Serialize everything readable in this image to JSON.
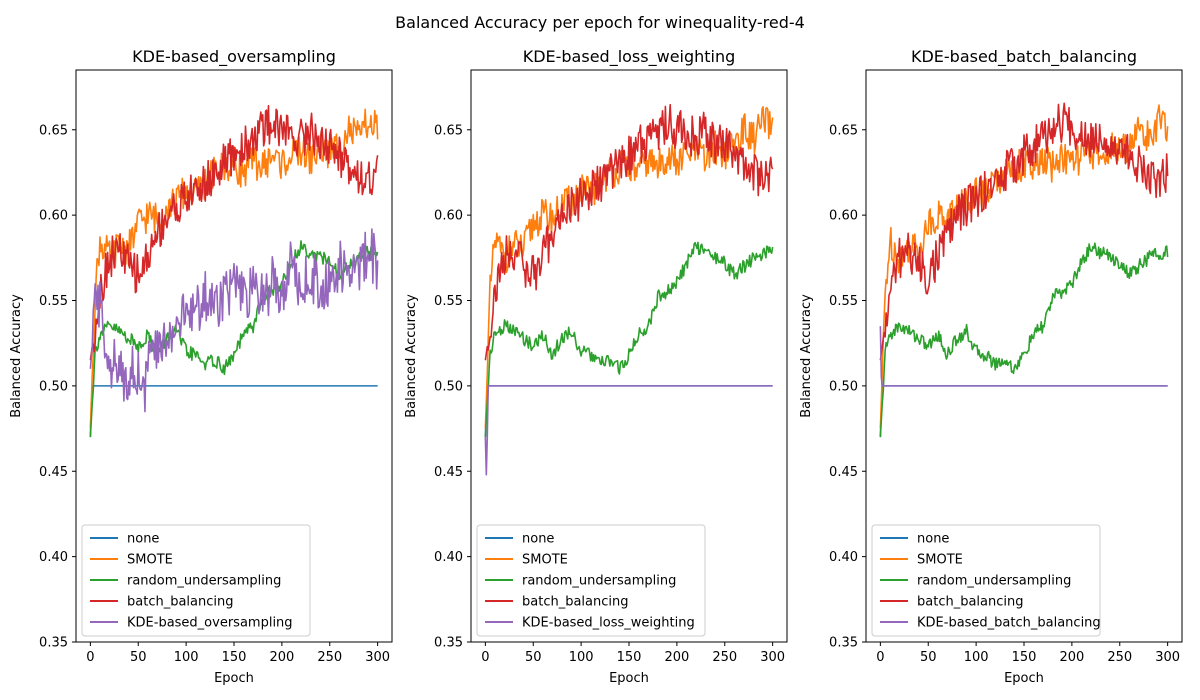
{
  "figure": {
    "suptitle": "Balanced Accuracy per epoch for winequality-red-4"
  },
  "colors": {
    "none": "#1f77b4",
    "SMOTE": "#ff7f0e",
    "random_undersampling": "#2ca02c",
    "batch_balancing": "#d62728",
    "kde": "#9467bd"
  },
  "chart_data": [
    {
      "type": "line",
      "title": "KDE-based_oversampling",
      "xlabel": "Epoch",
      "ylabel": "Balanced Accuracy",
      "xlim": [
        -15,
        315
      ],
      "ylim": [
        0.35,
        0.685
      ],
      "xticks": [
        0,
        50,
        100,
        150,
        200,
        250,
        300
      ],
      "yticks": [
        0.35,
        0.4,
        0.45,
        0.5,
        0.55,
        0.6,
        0.65
      ],
      "legend_position": "lower-left",
      "series": [
        {
          "name": "none",
          "color_key": "none",
          "x": [
            0,
            1,
            2,
            3,
            300
          ],
          "y": [
            0.47,
            0.485,
            0.5,
            0.5,
            0.5
          ]
        },
        {
          "name": "SMOTE",
          "color_key": "SMOTE",
          "x": [
            0,
            5,
            10,
            20,
            30,
            40,
            50,
            60,
            70,
            80,
            90,
            100,
            110,
            120,
            130,
            140,
            150,
            160,
            170,
            180,
            190,
            200,
            210,
            220,
            230,
            240,
            250,
            260,
            270,
            280,
            290,
            300
          ],
          "y": [
            0.475,
            0.555,
            0.585,
            0.575,
            0.582,
            0.58,
            0.595,
            0.6,
            0.598,
            0.605,
            0.608,
            0.615,
            0.612,
            0.62,
            0.625,
            0.628,
            0.63,
            0.625,
            0.632,
            0.628,
            0.635,
            0.63,
            0.635,
            0.638,
            0.632,
            0.64,
            0.636,
            0.642,
            0.65,
            0.645,
            0.655,
            0.65
          ]
        },
        {
          "name": "random_undersampling",
          "color_key": "random_undersampling",
          "x": [
            0,
            5,
            10,
            20,
            30,
            40,
            50,
            60,
            70,
            80,
            90,
            100,
            110,
            120,
            130,
            140,
            150,
            160,
            170,
            180,
            190,
            200,
            210,
            220,
            230,
            240,
            250,
            260,
            270,
            280,
            290,
            300
          ],
          "y": [
            0.47,
            0.52,
            0.53,
            0.535,
            0.532,
            0.528,
            0.523,
            0.53,
            0.518,
            0.528,
            0.532,
            0.52,
            0.518,
            0.513,
            0.515,
            0.51,
            0.518,
            0.53,
            0.535,
            0.552,
            0.555,
            0.56,
            0.572,
            0.582,
            0.578,
            0.576,
            0.572,
            0.565,
            0.57,
            0.575,
            0.578,
            0.578
          ]
        },
        {
          "name": "batch_balancing",
          "color_key": "batch_balancing",
          "x": [
            0,
            5,
            10,
            20,
            30,
            40,
            50,
            60,
            70,
            80,
            90,
            100,
            110,
            120,
            130,
            140,
            150,
            160,
            170,
            180,
            190,
            200,
            210,
            220,
            230,
            240,
            250,
            260,
            270,
            280,
            290,
            300
          ],
          "y": [
            0.515,
            0.535,
            0.555,
            0.575,
            0.58,
            0.57,
            0.565,
            0.575,
            0.59,
            0.6,
            0.605,
            0.61,
            0.615,
            0.618,
            0.625,
            0.63,
            0.635,
            0.64,
            0.645,
            0.65,
            0.655,
            0.65,
            0.648,
            0.645,
            0.65,
            0.642,
            0.64,
            0.635,
            0.63,
            0.625,
            0.62,
            0.625
          ]
        },
        {
          "name": "KDE-based_oversampling",
          "color_key": "kde",
          "x": [
            0,
            3,
            6,
            10,
            15,
            20,
            25,
            30,
            40,
            50,
            55,
            60,
            70,
            80,
            90,
            100,
            110,
            120,
            130,
            140,
            150,
            160,
            170,
            180,
            190,
            200,
            210,
            220,
            230,
            240,
            250,
            260,
            270,
            280,
            290,
            300
          ],
          "y": [
            0.51,
            0.53,
            0.56,
            0.545,
            0.53,
            0.515,
            0.512,
            0.505,
            0.508,
            0.51,
            0.49,
            0.515,
            0.52,
            0.528,
            0.538,
            0.54,
            0.545,
            0.552,
            0.548,
            0.555,
            0.558,
            0.55,
            0.555,
            0.553,
            0.56,
            0.558,
            0.57,
            0.56,
            0.565,
            0.558,
            0.562,
            0.57,
            0.565,
            0.57,
            0.58,
            0.57
          ]
        }
      ]
    },
    {
      "type": "line",
      "title": "KDE-based_loss_weighting",
      "xlabel": "Epoch",
      "ylabel": "Balanced Accuracy",
      "xlim": [
        -15,
        315
      ],
      "ylim": [
        0.35,
        0.685
      ],
      "xticks": [
        0,
        50,
        100,
        150,
        200,
        250,
        300
      ],
      "yticks": [
        0.35,
        0.4,
        0.45,
        0.5,
        0.55,
        0.6,
        0.65
      ],
      "legend_position": "lower-left",
      "series": [
        {
          "name": "none",
          "color_key": "none",
          "x": [
            0,
            1,
            2,
            3,
            300
          ],
          "y": [
            0.47,
            0.485,
            0.5,
            0.5,
            0.5
          ]
        },
        {
          "name": "SMOTE",
          "color_key": "SMOTE",
          "x": [
            0,
            5,
            10,
            20,
            30,
            40,
            50,
            60,
            70,
            80,
            90,
            100,
            110,
            120,
            130,
            140,
            150,
            160,
            170,
            180,
            190,
            200,
            210,
            220,
            230,
            240,
            250,
            260,
            270,
            280,
            290,
            300
          ],
          "y": [
            0.475,
            0.555,
            0.585,
            0.575,
            0.582,
            0.58,
            0.595,
            0.6,
            0.598,
            0.605,
            0.608,
            0.615,
            0.612,
            0.62,
            0.625,
            0.628,
            0.63,
            0.625,
            0.632,
            0.628,
            0.635,
            0.63,
            0.635,
            0.638,
            0.632,
            0.64,
            0.636,
            0.642,
            0.65,
            0.645,
            0.655,
            0.65
          ]
        },
        {
          "name": "random_undersampling",
          "color_key": "random_undersampling",
          "x": [
            0,
            5,
            10,
            20,
            30,
            40,
            50,
            60,
            70,
            80,
            90,
            100,
            110,
            120,
            130,
            140,
            150,
            160,
            170,
            180,
            190,
            200,
            210,
            220,
            230,
            240,
            250,
            260,
            270,
            280,
            290,
            300
          ],
          "y": [
            0.47,
            0.52,
            0.53,
            0.535,
            0.532,
            0.528,
            0.523,
            0.53,
            0.518,
            0.528,
            0.532,
            0.52,
            0.518,
            0.513,
            0.515,
            0.51,
            0.518,
            0.53,
            0.535,
            0.552,
            0.555,
            0.56,
            0.572,
            0.582,
            0.578,
            0.576,
            0.572,
            0.565,
            0.57,
            0.575,
            0.578,
            0.578
          ]
        },
        {
          "name": "batch_balancing",
          "color_key": "batch_balancing",
          "x": [
            0,
            5,
            10,
            20,
            30,
            40,
            50,
            60,
            70,
            80,
            90,
            100,
            110,
            120,
            130,
            140,
            150,
            160,
            170,
            180,
            190,
            200,
            210,
            220,
            230,
            240,
            250,
            260,
            270,
            280,
            290,
            300
          ],
          "y": [
            0.515,
            0.535,
            0.555,
            0.575,
            0.58,
            0.57,
            0.565,
            0.575,
            0.59,
            0.6,
            0.605,
            0.61,
            0.615,
            0.618,
            0.625,
            0.63,
            0.635,
            0.64,
            0.645,
            0.65,
            0.655,
            0.65,
            0.648,
            0.645,
            0.65,
            0.642,
            0.64,
            0.635,
            0.63,
            0.625,
            0.62,
            0.625
          ]
        },
        {
          "name": "KDE-based_loss_weighting",
          "color_key": "kde",
          "x": [
            0,
            1,
            2,
            3,
            4,
            5,
            300
          ],
          "y": [
            0.47,
            0.448,
            0.47,
            0.5,
            0.5,
            0.5,
            0.5
          ]
        }
      ]
    },
    {
      "type": "line",
      "title": "KDE-based_batch_balancing",
      "xlabel": "Epoch",
      "ylabel": "Balanced Accuracy",
      "xlim": [
        -15,
        315
      ],
      "ylim": [
        0.35,
        0.685
      ],
      "xticks": [
        0,
        50,
        100,
        150,
        200,
        250,
        300
      ],
      "yticks": [
        0.35,
        0.4,
        0.45,
        0.5,
        0.55,
        0.6,
        0.65
      ],
      "legend_position": "lower-left",
      "series": [
        {
          "name": "none",
          "color_key": "none",
          "x": [
            0,
            1,
            2,
            3,
            300
          ],
          "y": [
            0.47,
            0.485,
            0.5,
            0.5,
            0.5
          ]
        },
        {
          "name": "SMOTE",
          "color_key": "SMOTE",
          "x": [
            0,
            5,
            10,
            20,
            30,
            40,
            50,
            60,
            70,
            80,
            90,
            100,
            110,
            120,
            130,
            140,
            150,
            160,
            170,
            180,
            190,
            200,
            210,
            220,
            230,
            240,
            250,
            260,
            270,
            280,
            290,
            300
          ],
          "y": [
            0.475,
            0.555,
            0.585,
            0.575,
            0.582,
            0.58,
            0.595,
            0.6,
            0.598,
            0.605,
            0.608,
            0.615,
            0.612,
            0.62,
            0.625,
            0.628,
            0.63,
            0.625,
            0.632,
            0.628,
            0.635,
            0.63,
            0.635,
            0.638,
            0.632,
            0.64,
            0.636,
            0.642,
            0.65,
            0.645,
            0.655,
            0.65
          ]
        },
        {
          "name": "random_undersampling",
          "color_key": "random_undersampling",
          "x": [
            0,
            5,
            10,
            20,
            30,
            40,
            50,
            60,
            70,
            80,
            90,
            100,
            110,
            120,
            130,
            140,
            150,
            160,
            170,
            180,
            190,
            200,
            210,
            220,
            230,
            240,
            250,
            260,
            270,
            280,
            290,
            300
          ],
          "y": [
            0.47,
            0.52,
            0.53,
            0.535,
            0.532,
            0.528,
            0.523,
            0.53,
            0.518,
            0.528,
            0.532,
            0.52,
            0.518,
            0.513,
            0.515,
            0.51,
            0.518,
            0.53,
            0.535,
            0.552,
            0.555,
            0.56,
            0.572,
            0.582,
            0.578,
            0.576,
            0.572,
            0.565,
            0.57,
            0.575,
            0.578,
            0.578
          ]
        },
        {
          "name": "batch_balancing",
          "color_key": "batch_balancing",
          "x": [
            0,
            5,
            10,
            20,
            30,
            40,
            50,
            60,
            70,
            80,
            90,
            100,
            110,
            120,
            130,
            140,
            150,
            160,
            170,
            180,
            190,
            200,
            210,
            220,
            230,
            240,
            250,
            260,
            270,
            280,
            290,
            300
          ],
          "y": [
            0.515,
            0.535,
            0.555,
            0.575,
            0.58,
            0.57,
            0.565,
            0.575,
            0.59,
            0.6,
            0.605,
            0.61,
            0.615,
            0.618,
            0.625,
            0.63,
            0.635,
            0.64,
            0.645,
            0.65,
            0.655,
            0.65,
            0.648,
            0.645,
            0.65,
            0.642,
            0.64,
            0.635,
            0.63,
            0.625,
            0.62,
            0.625
          ]
        },
        {
          "name": "KDE-based_batch_balancing",
          "color_key": "kde",
          "x": [
            0,
            1,
            2,
            3,
            4,
            300
          ],
          "y": [
            0.535,
            0.505,
            0.5,
            0.5,
            0.5,
            0.5
          ]
        }
      ]
    }
  ]
}
